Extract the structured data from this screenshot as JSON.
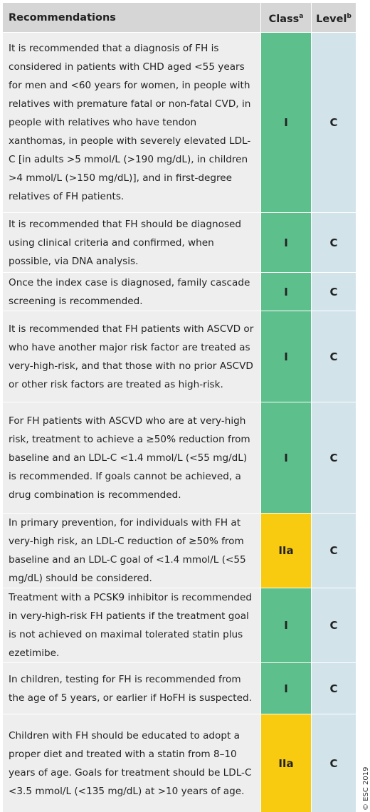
{
  "header": {
    "recommendations": "Recommendations",
    "class": "Class",
    "class_note": "a",
    "level": "Level",
    "level_note": "b"
  },
  "rows": [
    {
      "text": "It is recommended that a diagnosis of FH is considered in patients with CHD aged <55 years for men and <60 years for women, in people with relatives with premature fatal or non-fatal CVD, in people with relatives who have tendon xanthomas, in people with severely elevated LDL-C [in adults >5 mmol/L (>190 mg/dL), in children >4 mmol/L (>150 mg/dL)], and in first-degree relatives of FH patients.",
      "class": "I",
      "level": "C"
    },
    {
      "text": "It is recommended that FH should be diagnosed using clinical criteria and confirmed, when possible, via DNA analysis.",
      "class": "I",
      "level": "C"
    },
    {
      "text": "Once the index case is diagnosed, family cascade screening is recommended.",
      "class": "I",
      "level": "C"
    },
    {
      "text": "It is recommended that FH patients with ASCVD or who have another major risk factor are treated as very-high-risk, and that those with no prior ASCVD or other risk factors are treated as high-risk.",
      "class": "I",
      "level": "C"
    },
    {
      "text": "For FH patients with ASCVD who are at very-high risk, treatment to achieve a ≥50% reduction from baseline and an LDL-C <1.4 mmol/L (<55 mg/dL) is recommended. If goals cannot be achieved, a drug combination is recommended.",
      "class": "I",
      "level": "C"
    },
    {
      "text": "In primary prevention, for individuals with FH at very-high risk, an LDL-C reduction of ≥50% from baseline and an LDL-C goal of <1.4 mmol/L (<55 mg/dL) should be considered.",
      "class": "IIa",
      "level": "C"
    },
    {
      "text": "Treatment with a PCSK9 inhibitor is recommended in very-high-risk FH patients if the treatment goal is not achieved on maximal tolerated statin plus ezetimibe.",
      "class": "I",
      "level": "C"
    },
    {
      "text": "In children, testing for FH is recommended from the age of 5 years, or earlier if HoFH is suspected.",
      "class": "I",
      "level": "C"
    },
    {
      "text": "Children with FH should be educated to adopt a proper diet and treated with a statin from 8–10 years of age. Goals for treatment should be LDL-C <3.5 mmol/L (<135 mg/dL) at >10 years of age.",
      "class": "IIa",
      "level": "C"
    }
  ],
  "footer": "© ESC 2019"
}
